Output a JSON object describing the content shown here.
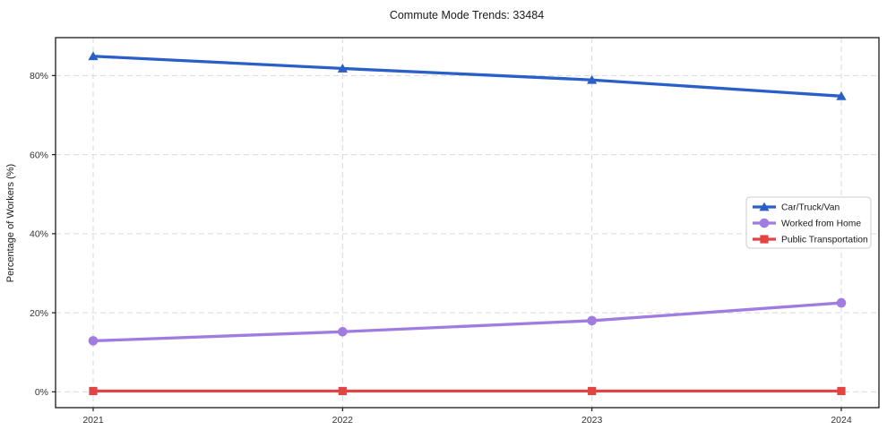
{
  "figure": {
    "background": "#ffffff",
    "spine_color": "#1a1a1a",
    "grid_color": "#d9d9d9",
    "tick_label_color": "#333333",
    "title_color": "#1a1a1a"
  },
  "chart_data": {
    "type": "line",
    "title": "Commute Mode Trends: 33484",
    "xlabel": "",
    "ylabel": "Percentage of Workers (%)",
    "x": [
      2021,
      2022,
      2023,
      2024
    ],
    "x_tick_labels": [
      "2021",
      "2022",
      "2023",
      "2024"
    ],
    "y_ticks": [
      0,
      20,
      40,
      60,
      80
    ],
    "y_tick_labels": [
      "0%",
      "20%",
      "40%",
      "60%",
      "80%"
    ],
    "ylim": [
      -4.0,
      89.6
    ],
    "grid": true,
    "grid_style": "dashed",
    "legend_position": "center-right",
    "series": [
      {
        "name": "Car/Truck/Van",
        "color": "#2a5fc8",
        "marker": "triangle",
        "values": [
          84.9,
          81.8,
          78.9,
          74.8
        ]
      },
      {
        "name": "Worked from Home",
        "color": "#a07ce0",
        "marker": "circle",
        "values": [
          12.9,
          15.2,
          18.0,
          22.5
        ]
      },
      {
        "name": "Public Transportation",
        "color": "#e24444",
        "marker": "square",
        "values": [
          0.2,
          0.2,
          0.2,
          0.2
        ]
      }
    ]
  }
}
